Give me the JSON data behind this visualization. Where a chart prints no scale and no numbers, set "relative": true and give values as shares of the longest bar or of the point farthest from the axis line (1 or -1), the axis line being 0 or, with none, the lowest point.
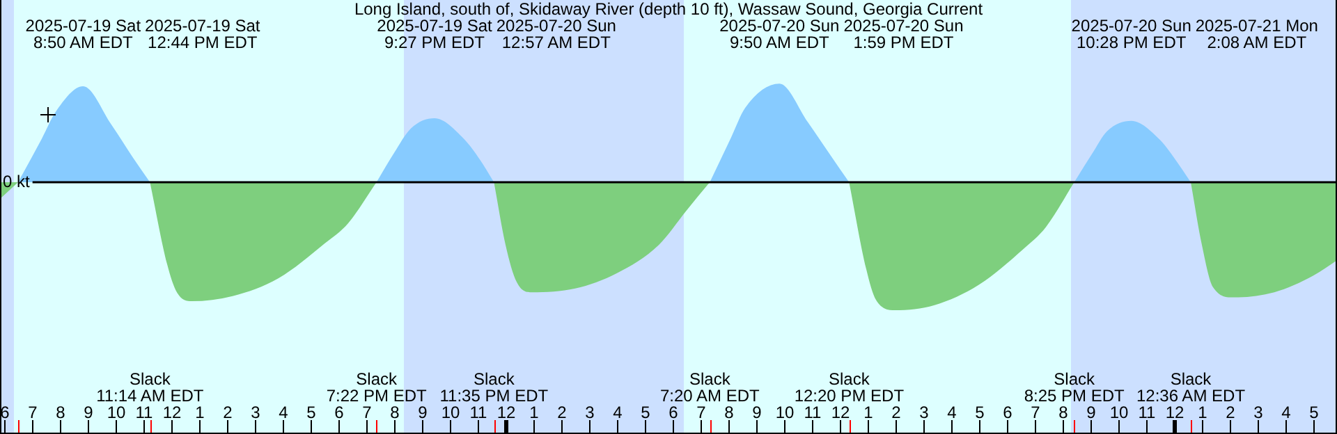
{
  "chart_data": {
    "type": "area",
    "title": "Long Island, south of, Skidaway River (depth 10 ft), Wassaw Sound, Georgia Current",
    "relative": true,
    "x": [
      "2025-07-19T05:51",
      "2025-07-19T06:30",
      "2025-07-19T07:21",
      "2025-07-19T07:51",
      "2025-07-19T08:50",
      "2025-07-19T09:51",
      "2025-07-19T10:36",
      "2025-07-19T11:14",
      "2025-07-19T11:51",
      "2025-07-19T12:12",
      "2025-07-19T12:44",
      "2025-07-19T14:12",
      "2025-07-19T15:51",
      "2025-07-19T17:30",
      "2025-07-19T18:21",
      "2025-07-19T19:22",
      "2025-07-19T20:00",
      "2025-07-19T20:36",
      "2025-07-19T21:27",
      "2025-07-19T22:30",
      "2025-07-19T23:06",
      "2025-07-19T23:35",
      "2025-07-20T00:00",
      "2025-07-20T00:24",
      "2025-07-20T00:57",
      "2025-07-20T02:30",
      "2025-07-20T04:00",
      "2025-07-20T05:30",
      "2025-07-20T06:30",
      "2025-07-20T07:20",
      "2025-07-20T08:06",
      "2025-07-20T08:36",
      "2025-07-20T09:50",
      "2025-07-20T10:51",
      "2025-07-20T11:42",
      "2025-07-20T12:20",
      "2025-07-20T12:57",
      "2025-07-20T13:18",
      "2025-07-20T13:59",
      "2025-07-20T15:24",
      "2025-07-20T17:00",
      "2025-07-20T18:36",
      "2025-07-20T19:24",
      "2025-07-20T20:25",
      "2025-07-20T21:03",
      "2025-07-20T21:36",
      "2025-07-20T22:28",
      "2025-07-20T23:30",
      "2025-07-21T00:06",
      "2025-07-21T00:36",
      "2025-07-21T01:00",
      "2025-07-21T01:24",
      "2025-07-21T02:08",
      "2025-07-21T03:36",
      "2025-07-21T05:00",
      "2025-07-21T05:51"
    ],
    "series": [
      {
        "color": "#87cbff",
        "values": [
          null,
          0,
          0.34,
          0.55,
          0.75,
          0.45,
          0.2,
          0,
          null,
          null,
          null,
          null,
          null,
          null,
          null,
          0,
          0.23,
          0.42,
          0.5,
          0.34,
          0.17,
          0,
          null,
          null,
          null,
          null,
          null,
          null,
          null,
          0,
          0.35,
          0.58,
          0.77,
          0.47,
          0.2,
          0,
          null,
          null,
          null,
          null,
          null,
          null,
          null,
          0,
          0.22,
          0.4,
          0.48,
          0.33,
          0.16,
          0,
          null,
          null,
          null,
          null,
          null,
          null
        ]
      },
      {
        "color": "#7ecf7e",
        "values": [
          -0.13,
          0,
          null,
          null,
          null,
          null,
          null,
          0,
          -0.64,
          -0.86,
          -0.93,
          -0.89,
          -0.75,
          -0.48,
          -0.32,
          0,
          null,
          null,
          null,
          null,
          null,
          0,
          -0.49,
          -0.78,
          -0.86,
          -0.83,
          -0.71,
          -0.49,
          -0.22,
          0,
          null,
          null,
          null,
          null,
          null,
          0,
          -0.68,
          -0.92,
          -1,
          -0.96,
          -0.8,
          -0.52,
          -0.35,
          0,
          null,
          null,
          null,
          null,
          null,
          0,
          -0.49,
          -0.82,
          -0.9,
          -0.86,
          -0.73,
          -0.61
        ]
      }
    ],
    "xlim": [
      "2025-07-19T05:51",
      "2025-07-21T05:51"
    ],
    "xticks": [
      {
        "value": "2025-07-19T06:00",
        "label": "6"
      },
      {
        "value": "2025-07-19T07:00",
        "label": "7"
      },
      {
        "value": "2025-07-19T08:00",
        "label": "8"
      },
      {
        "value": "2025-07-19T09:00",
        "label": "9"
      },
      {
        "value": "2025-07-19T10:00",
        "label": "10"
      },
      {
        "value": "2025-07-19T11:00",
        "label": "11"
      },
      {
        "value": "2025-07-19T12:00",
        "label": "12"
      },
      {
        "value": "2025-07-19T13:00",
        "label": "1"
      },
      {
        "value": "2025-07-19T14:00",
        "label": "2"
      },
      {
        "value": "2025-07-19T15:00",
        "label": "3"
      },
      {
        "value": "2025-07-19T16:00",
        "label": "4"
      },
      {
        "value": "2025-07-19T17:00",
        "label": "5"
      },
      {
        "value": "2025-07-19T18:00",
        "label": "6"
      },
      {
        "value": "2025-07-19T19:00",
        "label": "7"
      },
      {
        "value": "2025-07-19T20:00",
        "label": "8"
      },
      {
        "value": "2025-07-19T21:00",
        "label": "9"
      },
      {
        "value": "2025-07-19T22:00",
        "label": "10"
      },
      {
        "value": "2025-07-19T23:00",
        "label": "11"
      },
      {
        "value": "2025-07-20T00:00",
        "label": "12"
      },
      {
        "value": "2025-07-20T01:00",
        "label": "1"
      },
      {
        "value": "2025-07-20T02:00",
        "label": "2"
      },
      {
        "value": "2025-07-20T03:00",
        "label": "3"
      },
      {
        "value": "2025-07-20T04:00",
        "label": "4"
      },
      {
        "value": "2025-07-20T05:00",
        "label": "5"
      },
      {
        "value": "2025-07-20T06:00",
        "label": "6"
      },
      {
        "value": "2025-07-20T07:00",
        "label": "7"
      },
      {
        "value": "2025-07-20T08:00",
        "label": "8"
      },
      {
        "value": "2025-07-20T09:00",
        "label": "9"
      },
      {
        "value": "2025-07-20T10:00",
        "label": "10"
      },
      {
        "value": "2025-07-20T11:00",
        "label": "11"
      },
      {
        "value": "2025-07-20T12:00",
        "label": "12"
      },
      {
        "value": "2025-07-20T13:00",
        "label": "1"
      },
      {
        "value": "2025-07-20T14:00",
        "label": "2"
      },
      {
        "value": "2025-07-20T15:00",
        "label": "3"
      },
      {
        "value": "2025-07-20T16:00",
        "label": "4"
      },
      {
        "value": "2025-07-20T17:00",
        "label": "5"
      },
      {
        "value": "2025-07-20T18:00",
        "label": "6"
      },
      {
        "value": "2025-07-20T19:00",
        "label": "7"
      },
      {
        "value": "2025-07-20T20:00",
        "label": "8"
      },
      {
        "value": "2025-07-20T21:00",
        "label": "9"
      },
      {
        "value": "2025-07-20T22:00",
        "label": "10"
      },
      {
        "value": "2025-07-20T23:00",
        "label": "11"
      },
      {
        "value": "2025-07-21T00:00",
        "label": "12"
      },
      {
        "value": "2025-07-21T01:00",
        "label": "1"
      },
      {
        "value": "2025-07-21T02:00",
        "label": "2"
      },
      {
        "value": "2025-07-21T03:00",
        "label": "3"
      },
      {
        "value": "2025-07-21T04:00",
        "label": "4"
      },
      {
        "value": "2025-07-21T05:00",
        "label": "5"
      }
    ],
    "bands": [
      {
        "axis": "x",
        "from": "2025-07-19T05:51",
        "to": "2025-07-19T06:21",
        "color": "#cce0ff"
      },
      {
        "axis": "x",
        "from": "2025-07-19T06:21",
        "to": "2025-07-19T20:21",
        "color": "#ddffff"
      },
      {
        "axis": "x",
        "from": "2025-07-19T20:21",
        "to": "2025-07-20T06:24",
        "color": "#cce0ff"
      },
      {
        "axis": "x",
        "from": "2025-07-20T06:24",
        "to": "2025-07-20T20:18",
        "color": "#ddffff"
      },
      {
        "axis": "x",
        "from": "2025-07-20T20:18",
        "to": "2025-07-21T05:51",
        "color": "#cce0ff"
      }
    ],
    "ref_lines": [
      {
        "axis": "y",
        "value": 0,
        "label": "0 kt",
        "color": "#000000"
      }
    ],
    "annotations": [
      "2025-07-19 Sat\n8:50 AM EDT",
      "2025-07-19 Sat\n12:44 PM EDT",
      "2025-07-19 Sat\n9:27 PM EDT",
      "2025-07-20 Sun\n12:57 AM EDT",
      "2025-07-20 Sun\n9:50 AM EDT",
      "2025-07-20 Sun\n1:59 PM EDT",
      "2025-07-20 Sun\n10:28 PM EDT",
      "2025-07-21 Mon\n2:08 AM EDT",
      "Slack\n11:14 AM EDT",
      "Slack\n7:22 PM EDT",
      "Slack\n11:35 PM EDT",
      "Slack\n7:20 AM EDT",
      "Slack\n12:20 PM EDT",
      "Slack\n8:25 PM EDT",
      "Slack\n12:36 AM EDT"
    ]
  }
}
